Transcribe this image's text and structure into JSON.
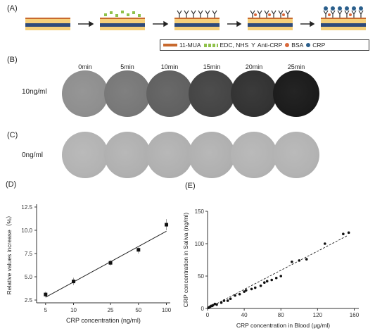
{
  "panels": {
    "a": "(A)",
    "b": "(B)",
    "c": "(C)",
    "d": "(D)",
    "e": "(E)"
  },
  "legend": [
    {
      "label": "11-MUA",
      "color": "#c8692e",
      "icon": "bar-swatch"
    },
    {
      "label": "EDC, NHS",
      "color": "#8fc14a",
      "icon": "dashed-squares-swatch"
    },
    {
      "label": "Anti-CRP",
      "color": "#333333",
      "icon": "y-antibody-glyph",
      "glyph": "Y"
    },
    {
      "label": "BSA",
      "color": "#d9693c",
      "icon": "dot-swatch"
    },
    {
      "label": "CRP",
      "color": "#2b5f8c",
      "icon": "dot-swatch"
    }
  ],
  "time_labels": [
    "0min",
    "5min",
    "10min",
    "15min",
    "20min",
    "25min"
  ],
  "row_labels": {
    "b": "10ng/ml",
    "c": "0ng/ml"
  },
  "circles": {
    "b_gray_levels": [
      0.56,
      0.47,
      0.38,
      0.27,
      0.2,
      0.11
    ],
    "c_gray_levels": [
      0.7,
      0.69,
      0.69,
      0.69,
      0.7,
      0.7
    ]
  },
  "chart_data": [
    {
      "type": "scatter",
      "panel": "D",
      "xlabel": "CRP concentration (ng/ml)",
      "ylabel": "Relative values increase（%）",
      "x_scale": "log",
      "x_ticks": [
        5,
        10,
        25,
        50,
        100
      ],
      "y_ticks": [
        2.5,
        5.0,
        7.5,
        10.0,
        12.5
      ],
      "xlim": [
        4,
        110
      ],
      "ylim": [
        2.2,
        12.8
      ],
      "points": [
        {
          "x": 5,
          "y": 3.1,
          "err": 0.3
        },
        {
          "x": 10,
          "y": 4.5,
          "err": 0.4
        },
        {
          "x": 25,
          "y": 6.5,
          "err": 0.3
        },
        {
          "x": 50,
          "y": 7.9,
          "err": 0.4
        },
        {
          "x": 100,
          "y": 10.6,
          "err": 0.6
        }
      ],
      "fit_line": {
        "x": [
          5,
          100
        ],
        "y": [
          2.8,
          9.9
        ]
      }
    },
    {
      "type": "scatter",
      "panel": "E",
      "xlabel": "CRP concentration in Blood (μg/ml)",
      "ylabel": "CRP concentration in Saliva (ng/ml)",
      "x_ticks": [
        0,
        40,
        80,
        120,
        160
      ],
      "y_ticks": [
        0,
        50,
        100,
        150
      ],
      "xlim": [
        0,
        165
      ],
      "ylim": [
        0,
        150
      ],
      "points": [
        {
          "x": 1,
          "y": 1
        },
        {
          "x": 2,
          "y": 2
        },
        {
          "x": 3,
          "y": 3
        },
        {
          "x": 4,
          "y": 4
        },
        {
          "x": 5,
          "y": 4
        },
        {
          "x": 6,
          "y": 5
        },
        {
          "x": 8,
          "y": 7
        },
        {
          "x": 10,
          "y": 6
        },
        {
          "x": 15,
          "y": 9
        },
        {
          "x": 18,
          "y": 12
        },
        {
          "x": 22,
          "y": 12
        },
        {
          "x": 25,
          "y": 15
        },
        {
          "x": 30,
          "y": 20
        },
        {
          "x": 35,
          "y": 22
        },
        {
          "x": 40,
          "y": 26
        },
        {
          "x": 42,
          "y": 28
        },
        {
          "x": 48,
          "y": 30
        },
        {
          "x": 52,
          "y": 32
        },
        {
          "x": 58,
          "y": 35
        },
        {
          "x": 62,
          "y": 40
        },
        {
          "x": 65,
          "y": 42
        },
        {
          "x": 70,
          "y": 44
        },
        {
          "x": 75,
          "y": 47
        },
        {
          "x": 80,
          "y": 50
        },
        {
          "x": 92,
          "y": 72
        },
        {
          "x": 100,
          "y": 74
        },
        {
          "x": 108,
          "y": 76
        },
        {
          "x": 128,
          "y": 100
        },
        {
          "x": 148,
          "y": 115
        },
        {
          "x": 154,
          "y": 117
        }
      ],
      "fit_line": {
        "x": [
          0,
          152
        ],
        "y": [
          0,
          112
        ]
      }
    }
  ]
}
